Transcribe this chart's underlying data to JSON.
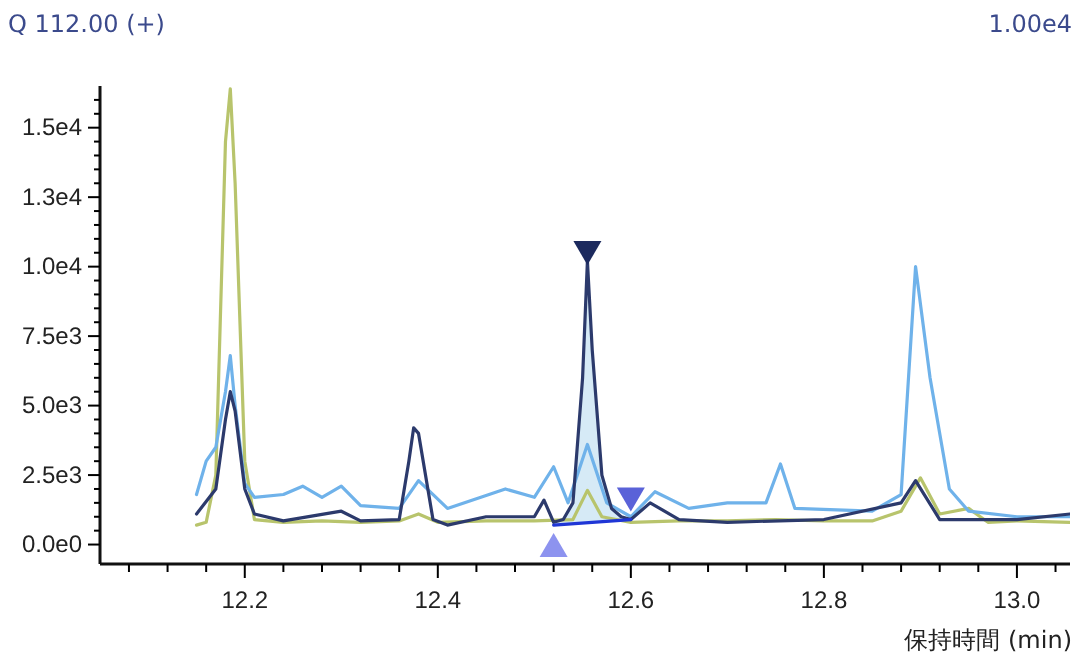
{
  "chart_data": {
    "type": "line",
    "xlabel": "保持時間 (min)",
    "annotations": [
      "Q 112.00 (+)",
      "1.00e4"
    ],
    "xlim": [
      12.05,
      13.055
    ],
    "xticks": [
      {
        "value": 12.08,
        "label": null
      },
      {
        "value": 12.12,
        "label": null
      },
      {
        "value": 12.16,
        "label": null
      },
      {
        "value": 12.2,
        "label": "12.2"
      },
      {
        "value": 12.24,
        "label": null
      },
      {
        "value": 12.28,
        "label": null
      },
      {
        "value": 12.32,
        "label": null
      },
      {
        "value": 12.36,
        "label": null
      },
      {
        "value": 12.4,
        "label": "12.4"
      },
      {
        "value": 12.44,
        "label": null
      },
      {
        "value": 12.48,
        "label": null
      },
      {
        "value": 12.52,
        "label": null
      },
      {
        "value": 12.56,
        "label": null
      },
      {
        "value": 12.6,
        "label": "12.6"
      },
      {
        "value": 12.64,
        "label": null
      },
      {
        "value": 12.68,
        "label": null
      },
      {
        "value": 12.72,
        "label": null
      },
      {
        "value": 12.76,
        "label": null
      },
      {
        "value": 12.8,
        "label": "12.8"
      },
      {
        "value": 12.84,
        "label": null
      },
      {
        "value": 12.88,
        "label": null
      },
      {
        "value": 12.92,
        "label": null
      },
      {
        "value": 12.96,
        "label": null
      },
      {
        "value": 13.0,
        "label": "13.0"
      },
      {
        "value": 13.04,
        "label": null
      }
    ],
    "ylim": [
      -700,
      16500
    ],
    "yticks": [
      {
        "value": 0,
        "label": "0.0e0"
      },
      {
        "value": 500,
        "label": null
      },
      {
        "value": 1000,
        "label": null
      },
      {
        "value": 1500,
        "label": null
      },
      {
        "value": 2000,
        "label": null
      },
      {
        "value": 2500,
        "label": "2.5e3"
      },
      {
        "value": 3000,
        "label": null
      },
      {
        "value": 3500,
        "label": null
      },
      {
        "value": 4000,
        "label": null
      },
      {
        "value": 4500,
        "label": null
      },
      {
        "value": 5000,
        "label": "5.0e3"
      },
      {
        "value": 5500,
        "label": null
      },
      {
        "value": 6000,
        "label": null
      },
      {
        "value": 6500,
        "label": null
      },
      {
        "value": 7000,
        "label": null
      },
      {
        "value": 7500,
        "label": "7.5e3"
      },
      {
        "value": 8000,
        "label": null
      },
      {
        "value": 8500,
        "label": null
      },
      {
        "value": 9000,
        "label": null
      },
      {
        "value": 9500,
        "label": null
      },
      {
        "value": 10000,
        "label": "1.0e4"
      },
      {
        "value": 10500,
        "label": null
      },
      {
        "value": 11000,
        "label": null
      },
      {
        "value": 11500,
        "label": null
      },
      {
        "value": 12000,
        "label": null
      },
      {
        "value": 12500,
        "label": "1.3e4"
      },
      {
        "value": 13000,
        "label": null
      },
      {
        "value": 13500,
        "label": null
      },
      {
        "value": 14000,
        "label": null
      },
      {
        "value": 14500,
        "label": null
      },
      {
        "value": 15000,
        "label": "1.5e4"
      },
      {
        "value": 15500,
        "label": null
      },
      {
        "value": 16000,
        "label": null
      }
    ],
    "series": [
      {
        "color": "#b8c46c",
        "x": [
          12.15,
          12.16,
          12.17,
          12.18,
          12.185,
          12.19,
          12.2,
          12.21,
          12.24,
          12.28,
          12.32,
          12.36,
          12.38,
          12.4,
          12.45,
          12.5,
          12.54,
          12.555,
          12.57,
          12.6,
          12.65,
          12.7,
          12.75,
          12.8,
          12.85,
          12.88,
          12.9,
          12.92,
          12.95,
          12.97,
          13.0,
          13.055
        ],
        "values": [
          700,
          800,
          2500,
          14500,
          16400,
          13000,
          3000,
          900,
          800,
          850,
          800,
          850,
          1100,
          800,
          850,
          850,
          900,
          1950,
          1000,
          800,
          850,
          850,
          900,
          850,
          850,
          1200,
          2400,
          1100,
          1300,
          800,
          850,
          800
        ]
      },
      {
        "color": "#6fb2ea",
        "x": [
          12.15,
          12.16,
          12.17,
          12.18,
          12.185,
          12.19,
          12.2,
          12.21,
          12.24,
          12.26,
          12.28,
          12.3,
          12.32,
          12.36,
          12.38,
          12.41,
          12.47,
          12.5,
          12.52,
          12.535,
          12.555,
          12.575,
          12.6,
          12.625,
          12.66,
          12.7,
          12.74,
          12.755,
          12.77,
          12.85,
          12.88,
          12.895,
          12.91,
          12.93,
          12.95,
          13.0,
          13.055
        ],
        "values": [
          1800,
          3000,
          3500,
          5500,
          6800,
          5000,
          2200,
          1700,
          1800,
          2100,
          1700,
          2100,
          1400,
          1300,
          2300,
          1300,
          2000,
          1700,
          2800,
          1500,
          3600,
          1500,
          1000,
          1900,
          1300,
          1500,
          1500,
          2900,
          1300,
          1200,
          1800,
          10000,
          6000,
          2000,
          1200,
          1000,
          1000
        ]
      },
      {
        "color": "#2c3a6c",
        "x": [
          12.15,
          12.17,
          12.18,
          12.185,
          12.19,
          12.2,
          12.21,
          12.24,
          12.3,
          12.32,
          12.36,
          12.37,
          12.375,
          12.38,
          12.395,
          12.41,
          12.45,
          12.5,
          12.51,
          12.52,
          12.53,
          12.54,
          12.55,
          12.555,
          12.56,
          12.57,
          12.58,
          12.59,
          12.6,
          12.62,
          12.65,
          12.7,
          12.8,
          12.88,
          12.895,
          12.92,
          13.0,
          13.055
        ],
        "values": [
          1100,
          2000,
          4500,
          5500,
          4800,
          2000,
          1100,
          850,
          1200,
          850,
          900,
          3000,
          4200,
          4000,
          900,
          700,
          1000,
          1000,
          1600,
          800,
          900,
          1500,
          6000,
          10200,
          7000,
          2500,
          1300,
          1000,
          900,
          1500,
          900,
          800,
          900,
          1500,
          2300,
          900,
          900,
          1100
        ]
      },
      {
        "color": "#1f36d6",
        "x": [
          12.52,
          12.6
        ],
        "values": [
          700,
          900
        ]
      }
    ]
  }
}
